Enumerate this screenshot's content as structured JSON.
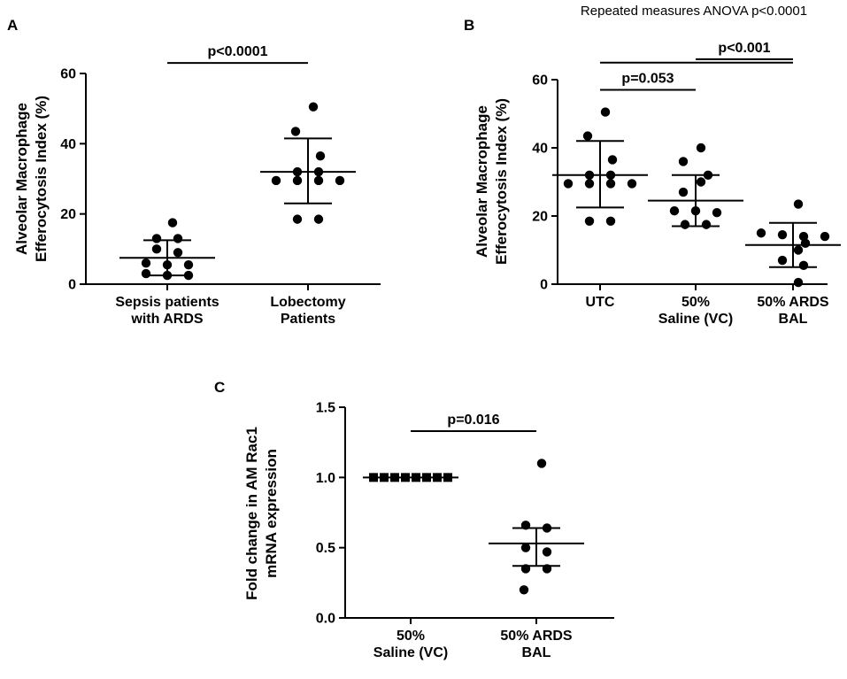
{
  "chart_data": [
    {
      "type": "scatter",
      "panel": "A",
      "ylabel_lines": [
        "Alveolar Macrophage",
        "Efferocytosis Index (%)"
      ],
      "ylim": [
        0,
        60
      ],
      "yticks": [
        "0",
        "20",
        "40",
        "60"
      ],
      "groups": [
        {
          "label_lines": [
            "Sepsis patients",
            "with ARDS"
          ],
          "values": [
            17.5,
            13,
            13,
            10,
            9,
            6,
            5.5,
            5.5,
            3,
            2.5,
            2.5
          ],
          "mean": 7.5,
          "sd_low": 2.5,
          "sd_high": 12.5
        },
        {
          "label_lines": [
            "Lobectomy",
            "Patients"
          ],
          "values": [
            50.5,
            43.5,
            36.5,
            32,
            32,
            29.5,
            29.5,
            29.5,
            29.5,
            18.5,
            18.5
          ],
          "mean": 32,
          "sd_low": 23,
          "sd_high": 41.5
        }
      ],
      "annotations": [
        {
          "text": "p<0.0001",
          "from": 0,
          "to": 1,
          "y": 63
        }
      ]
    },
    {
      "type": "scatter",
      "panel": "B",
      "title": "Repeated measures ANOVA p<0.0001",
      "ylabel_lines": [
        "Alveolar Macrophage",
        "Efferocytosis Index (%)"
      ],
      "ylim": [
        0,
        60
      ],
      "yticks": [
        "0",
        "20",
        "40",
        "60"
      ],
      "groups": [
        {
          "label_lines": [
            "UTC"
          ],
          "values": [
            50.5,
            43.5,
            36.5,
            32,
            32,
            29.5,
            29.5,
            29.5,
            29.5,
            18.5,
            18.5
          ],
          "mean": 32,
          "sd_low": 22.5,
          "sd_high": 42
        },
        {
          "label_lines": [
            "50%",
            "Saline (VC)"
          ],
          "values": [
            40,
            36,
            32,
            30,
            27,
            21.5,
            21.5,
            21,
            17.5,
            17.5
          ],
          "mean": 24.5,
          "sd_low": 17,
          "sd_high": 32
        },
        {
          "label_lines": [
            "50% ARDS",
            "BAL"
          ],
          "values": [
            23.5,
            15,
            14.5,
            14,
            14,
            12,
            10,
            7,
            5.5,
            0.5
          ],
          "mean": 11.5,
          "sd_low": 5,
          "sd_high": 18
        }
      ],
      "annotations": [
        {
          "text": "p=0.053",
          "from": 0,
          "to": 1,
          "y": 57
        },
        {
          "text": "p<0.001",
          "from": 1,
          "to": 2,
          "y": 66
        },
        {
          "text": "",
          "from": 0,
          "to": 2,
          "y": 65
        }
      ]
    },
    {
      "type": "scatter",
      "panel": "C",
      "ylabel_lines": [
        "Fold change in AM Rac1",
        "mRNA expression"
      ],
      "ylim": [
        0,
        1.5
      ],
      "yticks": [
        "0.0",
        "0.5",
        "1.0",
        "1.5"
      ],
      "groups": [
        {
          "label_lines": [
            "50%",
            "Saline (VC)"
          ],
          "values": [
            1,
            1,
            1,
            1,
            1,
            1,
            1,
            1
          ],
          "marker": "square",
          "mean": 1,
          "sd_low": 1,
          "sd_high": 1
        },
        {
          "label_lines": [
            "50% ARDS",
            "BAL"
          ],
          "values": [
            1.1,
            0.66,
            0.64,
            0.5,
            0.47,
            0.35,
            0.35,
            0.2
          ],
          "mean": 0.53,
          "sd_low": 0.37,
          "sd_high": 0.64
        }
      ],
      "annotations": [
        {
          "text": "p=0.016",
          "from": 0,
          "to": 1,
          "y": 1.33
        }
      ]
    }
  ]
}
